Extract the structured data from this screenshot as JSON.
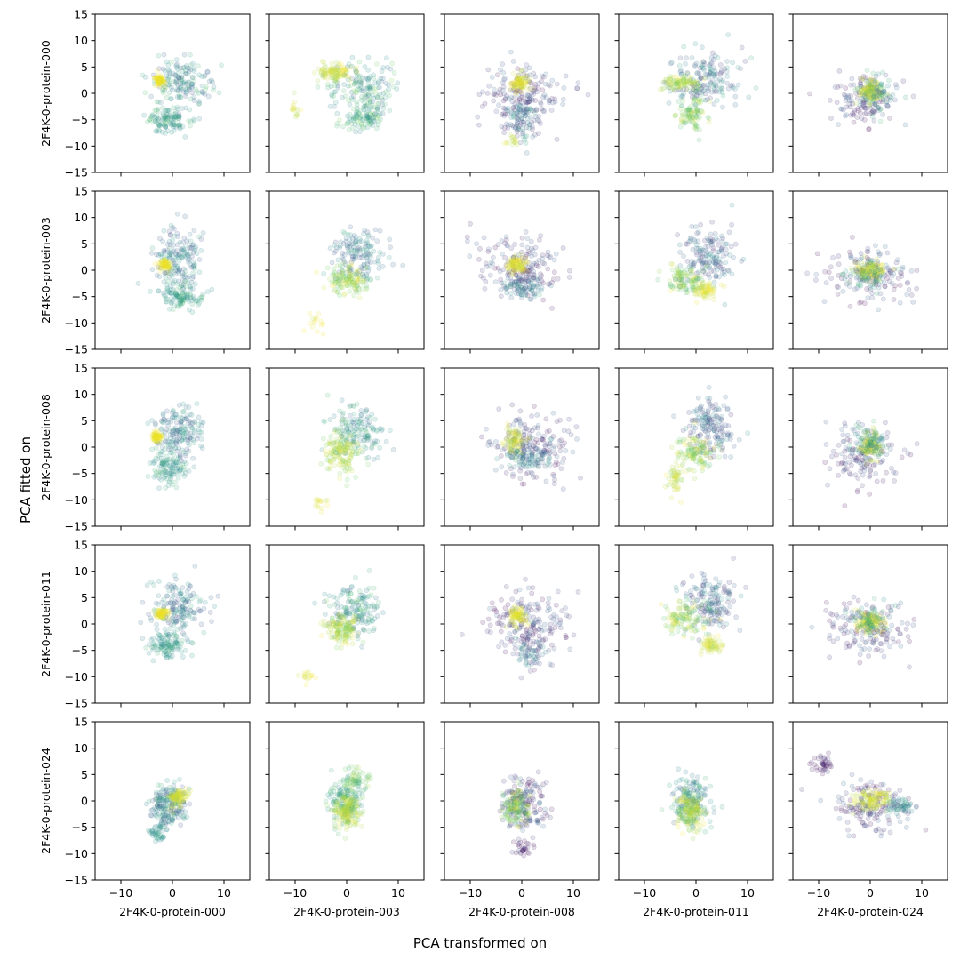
{
  "figure": {
    "ylabel": "PCA fitted on",
    "xlabel": "PCA transformed on"
  },
  "chart_data": {
    "type": "scatter",
    "layout": "5x5 grid of scatter subplots",
    "rows": [
      "2F4K-0-protein-000",
      "2F4K-0-protein-003",
      "2F4K-0-protein-008",
      "2F4K-0-protein-011",
      "2F4K-0-protein-024"
    ],
    "cols": [
      "2F4K-0-protein-000",
      "2F4K-0-protein-003",
      "2F4K-0-protein-008",
      "2F4K-0-protein-011",
      "2F4K-0-protein-024"
    ],
    "xlim": [
      -15,
      15
    ],
    "ylim": [
      -15,
      15
    ],
    "xticks": [
      -10,
      0,
      10
    ],
    "yticks": [
      -15,
      -10,
      -5,
      0,
      5,
      10,
      15
    ],
    "xticklabels": [
      "−10",
      "0",
      "10"
    ],
    "yticklabels": [
      "−15",
      "−10",
      "−5",
      "0",
      "5",
      "10",
      "15"
    ],
    "grid": false,
    "colormap": [
      "#440154",
      "#3b528b",
      "#21918c",
      "#5ec962",
      "#fde725"
    ],
    "point_alpha": 0.15,
    "panels": [
      [
        {
          "clusters": [
            {
              "x": 2,
              "y": 2,
              "sx": 6,
              "sy": 4.5,
              "n": 160,
              "c": [
                0.2,
                0.7
              ]
            },
            {
              "x": -1,
              "y": -5,
              "sx": 4,
              "sy": 2.5,
              "n": 120,
              "c": [
                0.4,
                0.7
              ]
            },
            {
              "x": -2.5,
              "y": 2.5,
              "sx": 1,
              "sy": 1.2,
              "n": 70,
              "c": [
                0.95,
                1
              ]
            }
          ]
        },
        {
          "clusters": [
            {
              "x": 3,
              "y": 1,
              "sx": 6,
              "sy": 5,
              "n": 170,
              "c": [
                0.3,
                0.8
              ]
            },
            {
              "x": -2,
              "y": 4,
              "sx": 3.5,
              "sy": 1.5,
              "n": 100,
              "c": [
                0.85,
                1
              ]
            },
            {
              "x": 3,
              "y": -5,
              "sx": 4,
              "sy": 2,
              "n": 90,
              "c": [
                0.4,
                0.8
              ]
            },
            {
              "x": -10,
              "y": -3,
              "sx": 1.5,
              "sy": 2,
              "n": 15,
              "c": [
                0.85,
                1
              ]
            }
          ]
        },
        {
          "clusters": [
            {
              "x": 0,
              "y": 0,
              "sx": 8,
              "sy": 6,
              "n": 170,
              "c": [
                0,
                0.35
              ]
            },
            {
              "x": 0,
              "y": -5,
              "sx": 3.5,
              "sy": 4,
              "n": 90,
              "c": [
                0.15,
                0.6
              ]
            },
            {
              "x": -0.5,
              "y": 2,
              "sx": 2,
              "sy": 1.8,
              "n": 80,
              "c": [
                0.9,
                1
              ]
            },
            {
              "x": -2,
              "y": -9,
              "sx": 1.5,
              "sy": 1,
              "n": 15,
              "c": [
                0.85,
                1
              ]
            }
          ]
        },
        {
          "clusters": [
            {
              "x": 2,
              "y": 3,
              "sx": 7,
              "sy": 5,
              "n": 170,
              "c": [
                0.1,
                0.6
              ]
            },
            {
              "x": -1,
              "y": -4,
              "sx": 3,
              "sy": 3,
              "n": 100,
              "c": [
                0.6,
                0.95
              ]
            },
            {
              "x": -3,
              "y": 2,
              "sx": 4,
              "sy": 1.5,
              "n": 90,
              "c": [
                0.75,
                1
              ]
            }
          ]
        },
        {
          "clusters": [
            {
              "x": -1,
              "y": -1,
              "sx": 6,
              "sy": 5,
              "n": 140,
              "c": [
                0,
                0.35
              ]
            },
            {
              "x": 0,
              "y": 0.5,
              "sx": 2.2,
              "sy": 2.2,
              "n": 110,
              "c": [
                0.85,
                1
              ]
            },
            {
              "x": 1,
              "y": 0,
              "sx": 3.5,
              "sy": 3.5,
              "n": 60,
              "c": [
                0.4,
                0.7
              ]
            }
          ]
        }
      ],
      [
        {
          "clusters": [
            {
              "x": 1,
              "y": 2,
              "sx": 5,
              "sy": 5.5,
              "n": 170,
              "c": [
                0.2,
                0.6
              ]
            },
            {
              "x": 2,
              "y": -5,
              "sx": 4,
              "sy": 2.5,
              "n": 110,
              "c": [
                0.4,
                0.7
              ]
            },
            {
              "x": -1.5,
              "y": 1,
              "sx": 1.2,
              "sy": 1,
              "n": 70,
              "c": [
                0.95,
                1
              ]
            }
          ]
        },
        {
          "clusters": [
            {
              "x": 2,
              "y": 3,
              "sx": 5.5,
              "sy": 5,
              "n": 150,
              "c": [
                0.2,
                0.6
              ]
            },
            {
              "x": 0,
              "y": -2,
              "sx": 4,
              "sy": 3,
              "n": 130,
              "c": [
                0.7,
                1
              ]
            },
            {
              "x": -6,
              "y": -10,
              "sx": 2,
              "sy": 2,
              "n": 15,
              "c": [
                0.9,
                1
              ]
            }
          ]
        },
        {
          "clusters": [
            {
              "x": 0,
              "y": 1,
              "sx": 7.5,
              "sy": 6,
              "n": 170,
              "c": [
                0,
                0.35
              ]
            },
            {
              "x": -1,
              "y": 1,
              "sx": 2,
              "sy": 1.5,
              "n": 90,
              "c": [
                0.9,
                1
              ]
            },
            {
              "x": 0,
              "y": -3,
              "sx": 4.5,
              "sy": 2,
              "n": 80,
              "c": [
                0.2,
                0.6
              ]
            }
          ]
        },
        {
          "clusters": [
            {
              "x": 2,
              "y": 3,
              "sx": 6,
              "sy": 6,
              "n": 160,
              "c": [
                0.1,
                0.5
              ]
            },
            {
              "x": -2,
              "y": -2,
              "sx": 4,
              "sy": 3,
              "n": 110,
              "c": [
                0.6,
                1
              ]
            },
            {
              "x": 2,
              "y": -4,
              "sx": 2,
              "sy": 1.5,
              "n": 60,
              "c": [
                0.9,
                1
              ]
            }
          ]
        },
        {
          "clusters": [
            {
              "x": 0,
              "y": -1,
              "sx": 8,
              "sy": 5,
              "n": 150,
              "c": [
                0,
                0.35
              ]
            },
            {
              "x": 0,
              "y": 0,
              "sx": 3,
              "sy": 1.8,
              "n": 110,
              "c": [
                0.9,
                1
              ]
            },
            {
              "x": 0,
              "y": -1,
              "sx": 4.5,
              "sy": 2.5,
              "n": 60,
              "c": [
                0.4,
                0.7
              ]
            }
          ]
        }
      ],
      [
        {
          "clusters": [
            {
              "x": 1,
              "y": 3,
              "sx": 4.5,
              "sy": 5,
              "n": 170,
              "c": [
                0.2,
                0.6
              ]
            },
            {
              "x": -1,
              "y": -4,
              "sx": 3.5,
              "sy": 3,
              "n": 110,
              "c": [
                0.4,
                0.65
              ]
            },
            {
              "x": -3,
              "y": 2,
              "sx": 1,
              "sy": 1,
              "n": 70,
              "c": [
                0.95,
                1
              ]
            }
          ]
        },
        {
          "clusters": [
            {
              "x": 2,
              "y": 3,
              "sx": 5,
              "sy": 5,
              "n": 150,
              "c": [
                0.3,
                0.7
              ]
            },
            {
              "x": -1,
              "y": -1,
              "sx": 3.5,
              "sy": 4,
              "n": 140,
              "c": [
                0.75,
                1
              ]
            },
            {
              "x": -5,
              "y": -11,
              "sx": 1.5,
              "sy": 1.5,
              "n": 15,
              "c": [
                0.9,
                1
              ]
            }
          ]
        },
        {
          "clusters": [
            {
              "x": 2,
              "y": 0,
              "sx": 8,
              "sy": 6,
              "n": 180,
              "c": [
                0,
                0.35
              ]
            },
            {
              "x": -1.5,
              "y": 1,
              "sx": 2,
              "sy": 2.5,
              "n": 80,
              "c": [
                0.85,
                1
              ]
            },
            {
              "x": 1,
              "y": -2,
              "sx": 4,
              "sy": 2.5,
              "n": 80,
              "c": [
                0.25,
                0.6
              ]
            }
          ]
        },
        {
          "clusters": [
            {
              "x": 3,
              "y": 4,
              "sx": 5,
              "sy": 5.5,
              "n": 160,
              "c": [
                0.1,
                0.5
              ]
            },
            {
              "x": 0,
              "y": -1,
              "sx": 4,
              "sy": 3,
              "n": 120,
              "c": [
                0.65,
                1
              ]
            },
            {
              "x": -4,
              "y": -6,
              "sx": 1.5,
              "sy": 3,
              "n": 50,
              "c": [
                0.8,
                1
              ]
            }
          ]
        },
        {
          "clusters": [
            {
              "x": -1,
              "y": -2,
              "sx": 7,
              "sy": 5.5,
              "n": 140,
              "c": [
                0,
                0.35
              ]
            },
            {
              "x": 0,
              "y": 0.5,
              "sx": 1.8,
              "sy": 2.5,
              "n": 100,
              "c": [
                0.85,
                1
              ]
            },
            {
              "x": 0,
              "y": 1,
              "sx": 3.5,
              "sy": 3,
              "n": 70,
              "c": [
                0.4,
                0.7
              ]
            }
          ]
        }
      ],
      [
        {
          "clusters": [
            {
              "x": 1,
              "y": 3,
              "sx": 5.5,
              "sy": 5,
              "n": 170,
              "c": [
                0.2,
                0.6
              ]
            },
            {
              "x": -1,
              "y": -4,
              "sx": 4,
              "sy": 2.5,
              "n": 110,
              "c": [
                0.4,
                0.65
              ]
            },
            {
              "x": -2,
              "y": 2,
              "sx": 1.2,
              "sy": 1,
              "n": 70,
              "c": [
                0.95,
                1
              ]
            }
          ]
        },
        {
          "clusters": [
            {
              "x": 2,
              "y": 3,
              "sx": 5.5,
              "sy": 5,
              "n": 160,
              "c": [
                0.3,
                0.7
              ]
            },
            {
              "x": -1,
              "y": -1,
              "sx": 3.5,
              "sy": 3,
              "n": 130,
              "c": [
                0.75,
                1
              ]
            },
            {
              "x": -8,
              "y": -10,
              "sx": 1.5,
              "sy": 1.5,
              "n": 15,
              "c": [
                0.9,
                1
              ]
            }
          ]
        },
        {
          "clusters": [
            {
              "x": 1,
              "y": 0,
              "sx": 8,
              "sy": 6,
              "n": 180,
              "c": [
                0,
                0.35
              ]
            },
            {
              "x": -1,
              "y": 1.5,
              "sx": 2,
              "sy": 1.8,
              "n": 80,
              "c": [
                0.9,
                1
              ]
            },
            {
              "x": 2,
              "y": -5,
              "sx": 3.5,
              "sy": 3,
              "n": 60,
              "c": [
                0.15,
                0.55
              ]
            }
          ]
        },
        {
          "clusters": [
            {
              "x": 3,
              "y": 4,
              "sx": 6,
              "sy": 5,
              "n": 160,
              "c": [
                0.1,
                0.5
              ]
            },
            {
              "x": -2,
              "y": 1,
              "sx": 4,
              "sy": 3,
              "n": 120,
              "c": [
                0.65,
                1
              ]
            },
            {
              "x": 3,
              "y": -4,
              "sx": 2,
              "sy": 1.5,
              "n": 60,
              "c": [
                0.85,
                1
              ]
            }
          ]
        },
        {
          "clusters": [
            {
              "x": 0,
              "y": -1,
              "sx": 8,
              "sy": 5,
              "n": 150,
              "c": [
                0,
                0.35
              ]
            },
            {
              "x": 0,
              "y": 0.5,
              "sx": 2.5,
              "sy": 2,
              "n": 110,
              "c": [
                0.9,
                1
              ]
            },
            {
              "x": 0,
              "y": 1,
              "sx": 3.5,
              "sy": 2.5,
              "n": 60,
              "c": [
                0.4,
                0.7
              ]
            }
          ]
        }
      ],
      [
        {
          "clusters": [
            {
              "x": -1,
              "y": -1,
              "sx": 3.5,
              "sy": 4,
              "n": 190,
              "c": [
                0.2,
                0.65
              ]
            },
            {
              "x": 1,
              "y": 0.5,
              "sx": 1.8,
              "sy": 2,
              "n": 90,
              "c": [
                0.85,
                1
              ]
            },
            {
              "x": -3,
              "y": -6,
              "sx": 1.5,
              "sy": 1.5,
              "n": 40,
              "c": [
                0.4,
                0.6
              ]
            }
          ]
        },
        {
          "clusters": [
            {
              "x": 0,
              "y": 0,
              "sx": 3.5,
              "sy": 4.5,
              "n": 170,
              "c": [
                0.4,
                0.8
              ]
            },
            {
              "x": 0,
              "y": -2,
              "sx": 2.5,
              "sy": 3.5,
              "n": 130,
              "c": [
                0.8,
                1
              ]
            },
            {
              "x": 2,
              "y": 4,
              "sx": 2.5,
              "sy": 2,
              "n": 50,
              "c": [
                0.6,
                0.9
              ]
            }
          ]
        },
        {
          "clusters": [
            {
              "x": 0,
              "y": 0,
              "sx": 4.5,
              "sy": 5,
              "n": 170,
              "c": [
                0,
                0.4
              ]
            },
            {
              "x": -1,
              "y": -1,
              "sx": 2.5,
              "sy": 3,
              "n": 120,
              "c": [
                0.6,
                1
              ]
            },
            {
              "x": 0,
              "y": -9,
              "sx": 2,
              "sy": 1.5,
              "n": 30,
              "c": [
                0,
                0.2
              ]
            }
          ]
        },
        {
          "clusters": [
            {
              "x": -1,
              "y": 0,
              "sx": 3.5,
              "sy": 5,
              "n": 170,
              "c": [
                0.3,
                0.7
              ]
            },
            {
              "x": -1,
              "y": -2,
              "sx": 2.5,
              "sy": 3.5,
              "n": 140,
              "c": [
                0.75,
                1
              ]
            }
          ]
        },
        {
          "clusters": [
            {
              "x": 0,
              "y": -1,
              "sx": 7,
              "sy": 5,
              "n": 150,
              "c": [
                0,
                0.35
              ]
            },
            {
              "x": -9,
              "y": 7,
              "sx": 2,
              "sy": 1.5,
              "n": 40,
              "c": [
                0,
                0.15
              ]
            },
            {
              "x": 0,
              "y": 0,
              "sx": 3.5,
              "sy": 2,
              "n": 110,
              "c": [
                0.85,
                1
              ]
            },
            {
              "x": 6,
              "y": -1,
              "sx": 2.5,
              "sy": 2,
              "n": 50,
              "c": [
                0.3,
                0.6
              ]
            }
          ]
        }
      ]
    ]
  }
}
